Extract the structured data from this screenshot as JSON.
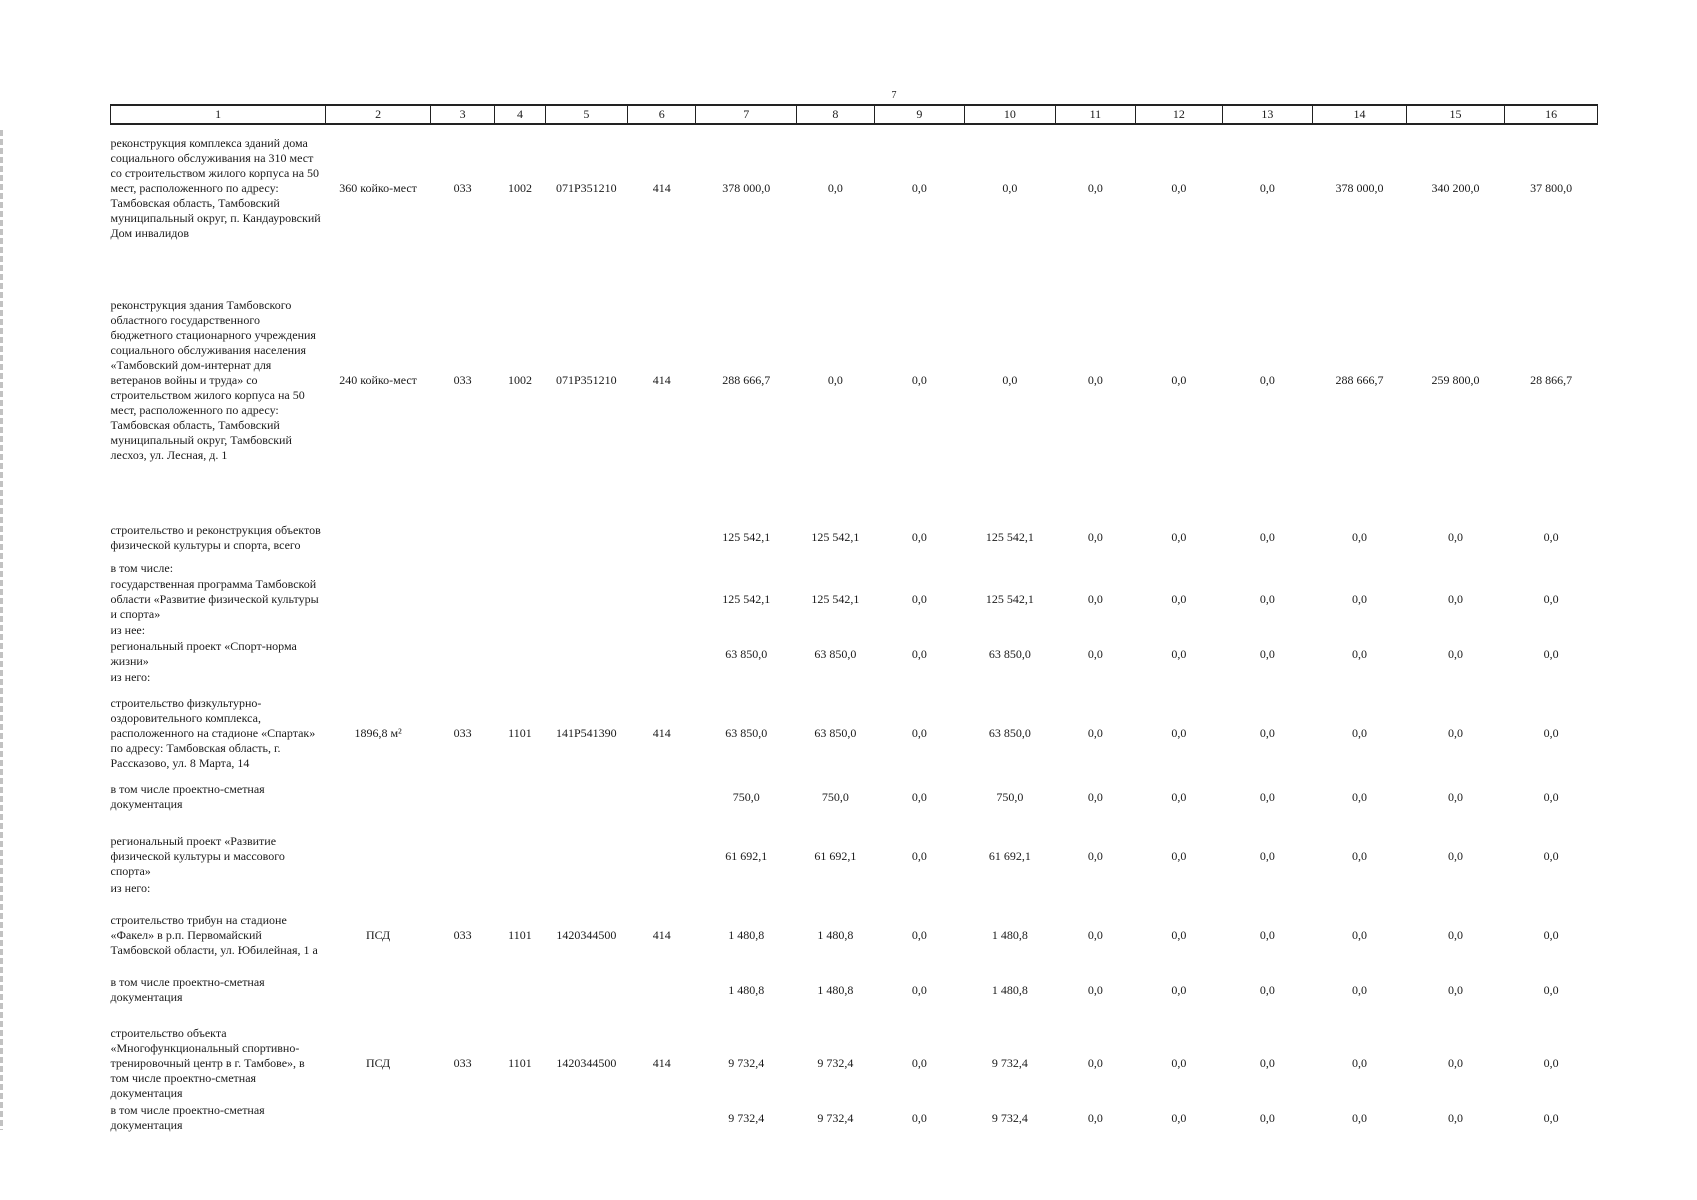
{
  "page": {
    "number": "7"
  },
  "columns": [
    "1",
    "2",
    "3",
    "4",
    "5",
    "6",
    "7",
    "8",
    "9",
    "10",
    "11",
    "12",
    "13",
    "14",
    "15",
    "16"
  ],
  "rows": [
    {
      "type": "item",
      "h": 128,
      "name": "реконструкция комплекса зданий дома социального обслуживания на 310 мест со строительством жилого корпуса на 50 мест, расположенного по адресу: Тамбовская область, Тамбовский муниципальный округ, п. Кандауровский Дом инвалидов",
      "cells": [
        "360 койко-мест",
        "033",
        "1002",
        "071P351210",
        "414",
        "378 000,0",
        "0,0",
        "0,0",
        "0,0",
        "0,0",
        "0,0",
        "0,0",
        "378 000,0",
        "340 200,0",
        "37 800,0"
      ]
    },
    {
      "type": "gap",
      "h": 34
    },
    {
      "type": "item",
      "h": 188,
      "name": "реконструкция здания Тамбовского областного государственного бюджетного стационарного учреждения социального обслуживания населения «Тамбовский дом-интернат для ветеранов войны и труда» со строительством жилого корпуса на 50 мест, расположенного по адресу: Тамбовская область, Тамбовский муниципальный округ, Тамбовский лесхоз, ул. Лесная, д. 1",
      "cells": [
        "240 койко-мест",
        "033",
        "1002",
        "071P351210",
        "414",
        "288 666,7",
        "0,0",
        "0,0",
        "0,0",
        "0,0",
        "0,0",
        "0,0",
        "288 666,7",
        "259 800,0",
        "28 866,7"
      ]
    },
    {
      "type": "gap",
      "h": 40
    },
    {
      "type": "item",
      "h": 47,
      "name": "строительство и реконструкция объектов физической культуры и спорта, всего",
      "cells": [
        "",
        "",
        "",
        "",
        "",
        "125 542,1",
        "125 542,1",
        "0,0",
        "125 542,1",
        "0,0",
        "0,0",
        "0,0",
        "0,0",
        "0,0",
        "0,0"
      ]
    },
    {
      "type": "sub",
      "name": "в том числе:"
    },
    {
      "type": "item",
      "h": 47,
      "name": "государственная программа Тамбовской области «Развитие физической культуры и спорта»",
      "cells": [
        "",
        "",
        "",
        "",
        "",
        "125 542,1",
        "125 542,1",
        "0,0",
        "125 542,1",
        "0,0",
        "0,0",
        "0,0",
        "0,0",
        "0,0",
        "0,0"
      ]
    },
    {
      "type": "sub",
      "name": "из нее:"
    },
    {
      "type": "item",
      "h": 32,
      "name": "региональный проект «Спорт-норма жизни»",
      "cells": [
        "",
        "",
        "",
        "",
        "",
        "63 850,0",
        "63 850,0",
        "0,0",
        "63 850,0",
        "0,0",
        "0,0",
        "0,0",
        "0,0",
        "0,0",
        "0,0"
      ]
    },
    {
      "type": "sub",
      "name": "из него:"
    },
    {
      "type": "item",
      "h": 96,
      "name": "строительство физкультурно-оздоровительного комплекса, расположенного на стадионе «Спартак» по адресу: Тамбовская область, г. Рассказово, ул. 8 Марта, 14",
      "cells": [
        "1896,8 м²",
        "033",
        "1101",
        "141P541390",
        "414",
        "63 850,0",
        "63 850,0",
        "0,0",
        "63 850,0",
        "0,0",
        "0,0",
        "0,0",
        "0,0",
        "0,0",
        "0,0"
      ]
    },
    {
      "type": "item",
      "h": 32,
      "name": "в том числе проектно-сметная документация",
      "cells": [
        "",
        "",
        "",
        "",
        "",
        "750,0",
        "750,0",
        "0,0",
        "750,0",
        "0,0",
        "0,0",
        "0,0",
        "0,0",
        "0,0",
        "0,0"
      ]
    },
    {
      "type": "gap",
      "h": 18
    },
    {
      "type": "item",
      "h": 50,
      "name": "региональный проект «Развитие физической культуры и массового спорта»",
      "cells": [
        "",
        "",
        "",
        "",
        "",
        "61 692,1",
        "61 692,1",
        "0,0",
        "61 692,1",
        "0,0",
        "0,0",
        "0,0",
        "0,0",
        "0,0",
        "0,0"
      ]
    },
    {
      "type": "sub",
      "name": "из него:"
    },
    {
      "type": "item",
      "h": 78,
      "name": "строительство трибун на стадионе «Факел» в р.п. Первомайский Тамбовской области, ул. Юбилейная, 1 а",
      "cells": [
        "ПСД",
        "033",
        "1101",
        "1420344500",
        "414",
        "1 480,8",
        "1 480,8",
        "0,0",
        "1 480,8",
        "0,0",
        "0,0",
        "0,0",
        "0,0",
        "0,0",
        "0,0"
      ]
    },
    {
      "type": "item",
      "h": 32,
      "name": "в том числе проектно-сметная документация",
      "cells": [
        "",
        "",
        "",
        "",
        "",
        "1 480,8",
        "1 480,8",
        "0,0",
        "1 480,8",
        "0,0",
        "0,0",
        "0,0",
        "0,0",
        "0,0",
        "0,0"
      ]
    },
    {
      "type": "gap",
      "h": 18
    },
    {
      "type": "item",
      "h": 78,
      "name": "строительство объекта «Многофункциональный спортивно-тренировочный центр в г. Тамбове», в том числе проектно-сметная документация",
      "cells": [
        "ПСД",
        "033",
        "1101",
        "1420344500",
        "414",
        "9 732,4",
        "9 732,4",
        "0,0",
        "9 732,4",
        "0,0",
        "0,0",
        "0,0",
        "0,0",
        "0,0",
        "0,0"
      ]
    },
    {
      "type": "item",
      "h": 32,
      "name": "в том числе проектно-сметная документация",
      "cells": [
        "",
        "",
        "",
        "",
        "",
        "9 732,4",
        "9 732,4",
        "0,0",
        "9 732,4",
        "0,0",
        "0,0",
        "0,0",
        "0,0",
        "0,0",
        "0,0"
      ]
    }
  ]
}
